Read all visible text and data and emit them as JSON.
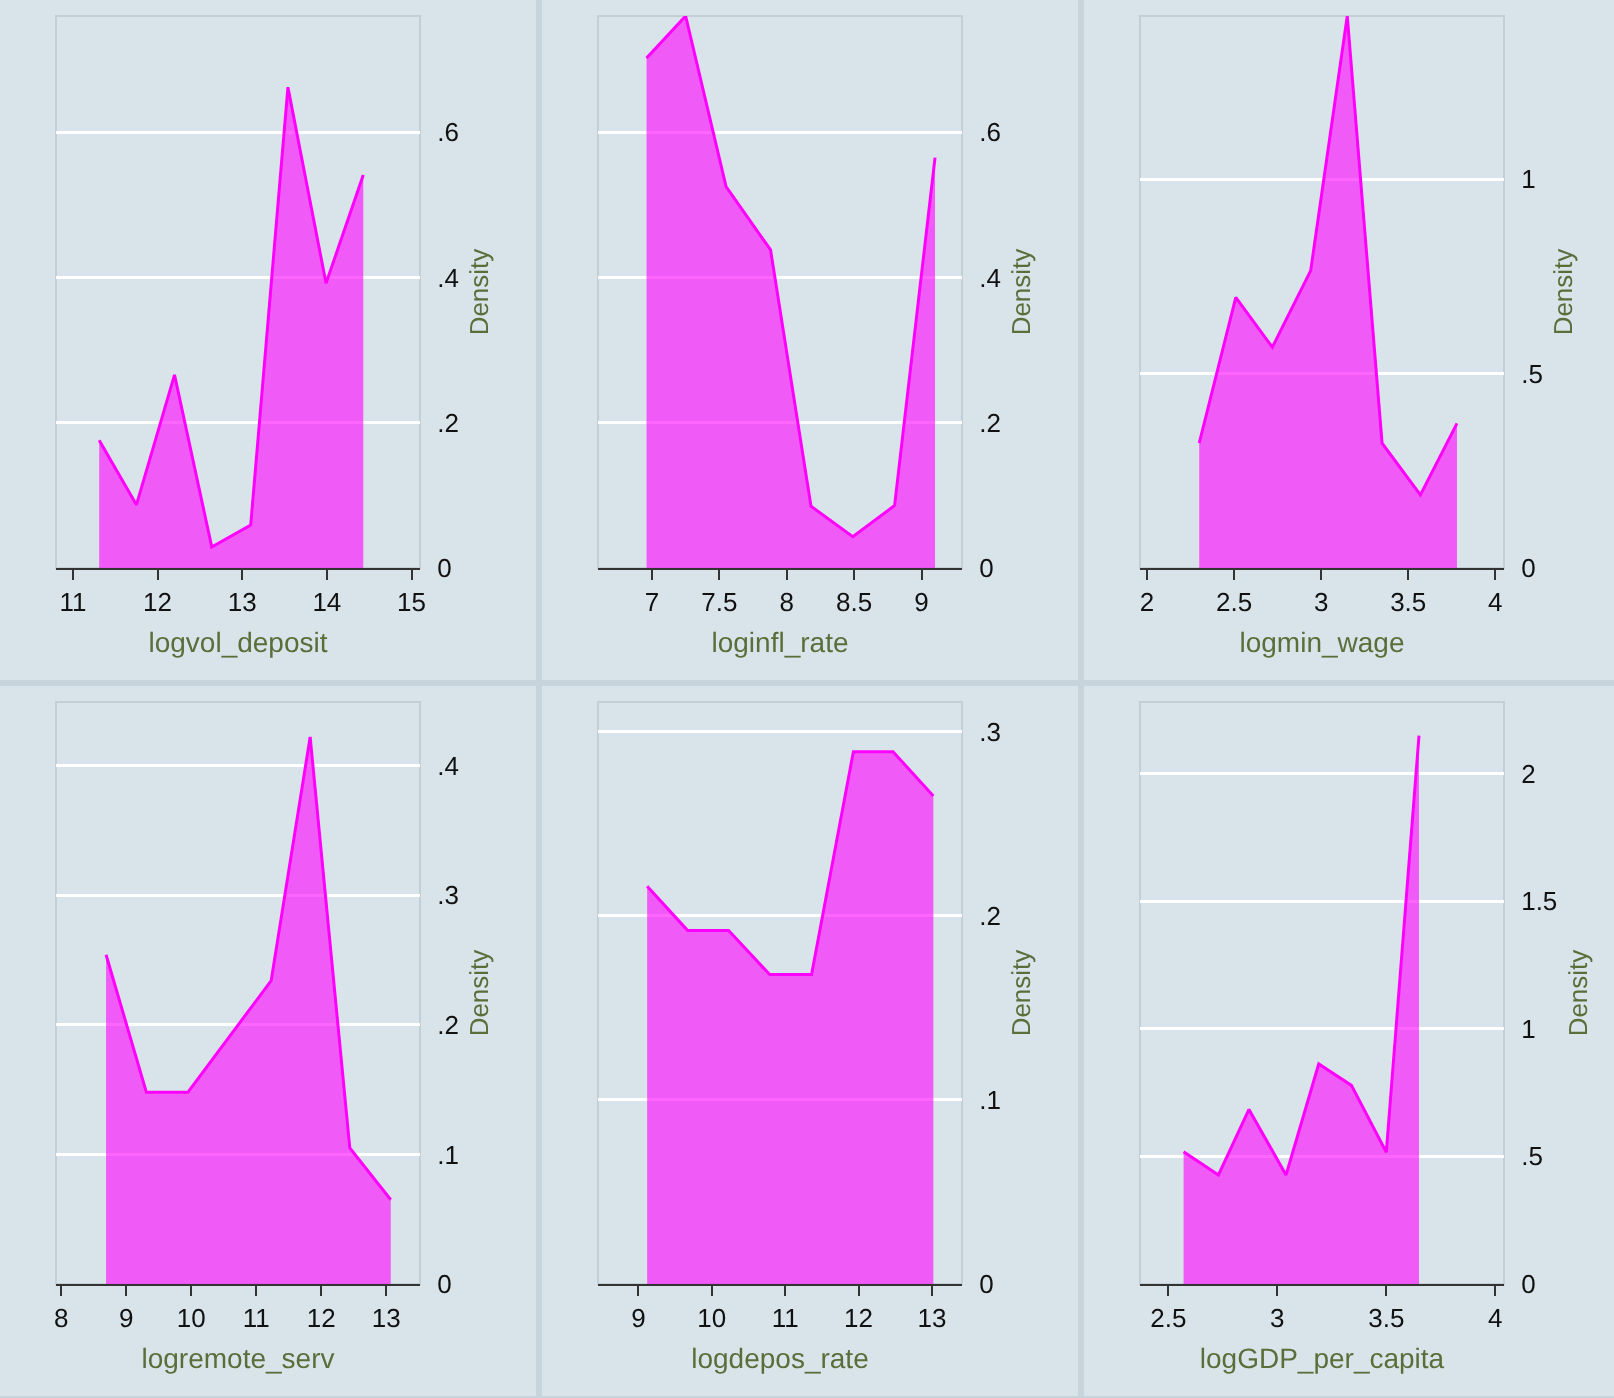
{
  "chart_data": [
    {
      "type": "area",
      "xlabel": "logvol_deposit",
      "ylabel": "Density",
      "grid": "y",
      "xlim": [
        10.8,
        15.1
      ],
      "xticks": [
        11,
        12,
        13,
        14,
        15
      ],
      "ylim": [
        0,
        0.76
      ],
      "yticks": [
        0,
        {
          "value": 0.2,
          "label": ".2"
        },
        {
          "value": 0.4,
          "label": ".4"
        },
        {
          "value": 0.6,
          "label": ".6"
        }
      ],
      "x": [
        11.31,
        11.75,
        12.2,
        12.64,
        13.1,
        13.54,
        13.99,
        14.43
      ],
      "series": [
        {
          "color": "#ff00ff",
          "values": [
            0.176,
            0.087,
            0.266,
            0.029,
            0.059,
            0.662,
            0.392,
            0.541
          ]
        }
      ]
    },
    {
      "type": "area",
      "xlabel": "loginfl_rate",
      "ylabel": "Density",
      "grid": "y",
      "xlim": [
        6.6,
        9.3
      ],
      "xticks": [
        7,
        7.5,
        8,
        8.5,
        9
      ],
      "ylim": [
        0,
        0.76
      ],
      "yticks": [
        0,
        {
          "value": 0.2,
          "label": ".2"
        },
        {
          "value": 0.4,
          "label": ".4"
        },
        {
          "value": 0.6,
          "label": ".6"
        }
      ],
      "x": [
        6.96,
        7.25,
        7.55,
        7.88,
        8.18,
        8.49,
        8.8,
        9.1
      ],
      "series": [
        {
          "color": "#ff00ff",
          "values": [
            0.702,
            0.76,
            0.525,
            0.438,
            0.085,
            0.043,
            0.086,
            0.565
          ]
        }
      ]
    },
    {
      "type": "area",
      "xlabel": "logmin_wage",
      "ylabel": "Density",
      "grid": "y",
      "xlim": [
        1.96,
        4.05
      ],
      "xticks": [
        2,
        2.5,
        3,
        3.5,
        4
      ],
      "ylim": [
        0,
        1.42
      ],
      "yticks": [
        0,
        {
          "value": 0.5,
          "label": ".5"
        },
        1
      ],
      "x": [
        2.3,
        2.51,
        2.72,
        2.94,
        3.15,
        3.35,
        3.57,
        3.78
      ],
      "series": [
        {
          "color": "#ff00ff",
          "values": [
            0.321,
            0.696,
            0.568,
            0.765,
            1.42,
            0.321,
            0.188,
            0.372
          ]
        }
      ]
    },
    {
      "type": "area",
      "xlabel": "logremote_serv",
      "ylabel": "Density",
      "grid": "y",
      "xlim": [
        7.92,
        13.52
      ],
      "xticks": [
        8,
        9,
        10,
        11,
        12,
        13
      ],
      "ylim": [
        0,
        0.449
      ],
      "yticks": [
        0,
        {
          "value": 0.1,
          "label": ".1"
        },
        {
          "value": 0.2,
          "label": ".2"
        },
        {
          "value": 0.3,
          "label": ".3"
        },
        {
          "value": 0.4,
          "label": ".4"
        }
      ],
      "x": [
        8.69,
        9.31,
        9.95,
        11.23,
        11.83,
        12.44,
        13.07
      ],
      "series": [
        {
          "color": "#ff00ff",
          "values": [
            0.254,
            0.148,
            0.148,
            0.234,
            0.422,
            0.105,
            0.065
          ]
        }
      ]
    },
    {
      "type": "area",
      "xlabel": "logdepos_rate",
      "ylabel": "Density",
      "grid": "y",
      "xlim": [
        8.45,
        13.41
      ],
      "xticks": [
        9,
        10,
        11,
        12,
        13
      ],
      "ylim": [
        0,
        0.316
      ],
      "yticks": [
        0,
        {
          "value": 0.1,
          "label": ".1"
        },
        {
          "value": 0.2,
          "label": ".2"
        },
        {
          "value": 0.3,
          "label": ".3"
        }
      ],
      "x": [
        9.12,
        9.67,
        10.23,
        10.79,
        11.36,
        11.93,
        12.47,
        13.02
      ],
      "series": [
        {
          "color": "#ff00ff",
          "values": [
            0.216,
            0.192,
            0.192,
            0.168,
            0.168,
            0.289,
            0.289,
            0.265
          ]
        }
      ]
    },
    {
      "type": "area",
      "xlabel": "logGDP_per_capita",
      "ylabel": "Density",
      "grid": "y",
      "xlim": [
        2.37,
        4.04
      ],
      "xticks": [
        2.5,
        3,
        3.5,
        4
      ],
      "ylim": [
        0,
        2.28
      ],
      "yticks": [
        0,
        {
          "value": 0.5,
          "label": ".5"
        },
        1,
        1.5,
        2
      ],
      "x": [
        2.57,
        2.73,
        2.87,
        3.04,
        3.19,
        3.34,
        3.5,
        3.65
      ],
      "series": [
        {
          "color": "#ff00ff",
          "values": [
            0.518,
            0.427,
            0.684,
            0.427,
            0.862,
            0.778,
            0.516,
            2.148
          ]
        }
      ]
    }
  ]
}
